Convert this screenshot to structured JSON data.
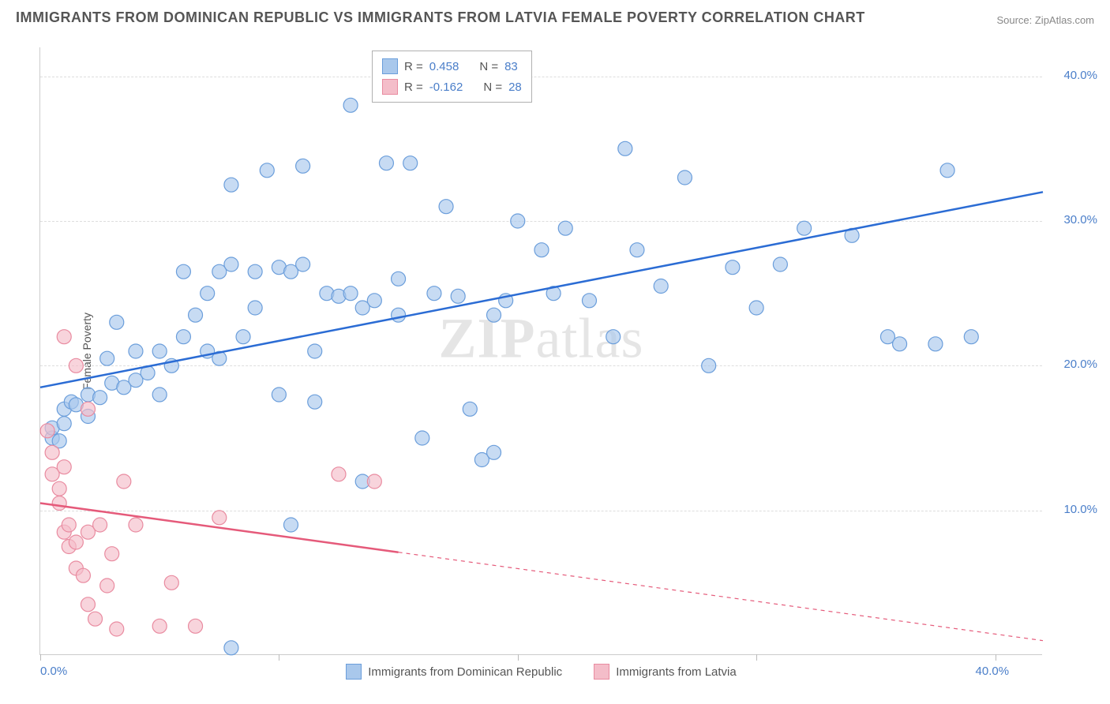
{
  "header": {
    "title": "IMMIGRANTS FROM DOMINICAN REPUBLIC VS IMMIGRANTS FROM LATVIA FEMALE POVERTY CORRELATION CHART",
    "source": "Source: ZipAtlas.com"
  },
  "chart": {
    "type": "scatter",
    "ylabel": "Female Poverty",
    "watermark_prefix": "ZIP",
    "watermark_suffix": "atlas",
    "xlim": [
      0,
      42
    ],
    "ylim": [
      0,
      42
    ],
    "yticks": [
      10.0,
      20.0,
      30.0,
      40.0
    ],
    "ytick_labels": [
      "10.0%",
      "20.0%",
      "30.0%",
      "40.0%"
    ],
    "xticks": [
      0,
      10,
      20,
      30,
      40
    ],
    "xtick_labels": [
      "0.0%",
      "",
      "",
      "",
      "40.0%"
    ],
    "background_color": "#ffffff",
    "grid_color": "#dddddd",
    "axis_color": "#cccccc",
    "marker_radius": 9,
    "marker_stroke_width": 1.2,
    "line_width": 2.5,
    "series": [
      {
        "name": "Immigrants from Dominican Republic",
        "fill_color": "#a9c8ec",
        "stroke_color": "#6b9edb",
        "line_color": "#2b6cd4",
        "r_value": "0.458",
        "n_value": "83",
        "trend": {
          "x1": 0,
          "y1": 18.5,
          "x2": 42,
          "y2": 32.0,
          "dash_from_x": 42
        },
        "points": [
          [
            0.5,
            15.0
          ],
          [
            0.5,
            15.7
          ],
          [
            0.8,
            14.8
          ],
          [
            1.0,
            16.0
          ],
          [
            1.0,
            17.0
          ],
          [
            1.3,
            17.5
          ],
          [
            1.5,
            17.3
          ],
          [
            2.0,
            18.0
          ],
          [
            2.0,
            16.5
          ],
          [
            2.5,
            17.8
          ],
          [
            2.8,
            20.5
          ],
          [
            3.0,
            18.8
          ],
          [
            3.2,
            23.0
          ],
          [
            3.5,
            18.5
          ],
          [
            4.0,
            19.0
          ],
          [
            4.0,
            21.0
          ],
          [
            4.5,
            19.5
          ],
          [
            5.0,
            18.0
          ],
          [
            5.0,
            21.0
          ],
          [
            5.5,
            20.0
          ],
          [
            6.0,
            22.0
          ],
          [
            6.0,
            26.5
          ],
          [
            6.5,
            23.5
          ],
          [
            7.0,
            25.0
          ],
          [
            7.0,
            21.0
          ],
          [
            7.5,
            20.5
          ],
          [
            7.5,
            26.5
          ],
          [
            8.0,
            32.5
          ],
          [
            8.0,
            27.0
          ],
          [
            8.5,
            22.0
          ],
          [
            9.0,
            26.5
          ],
          [
            9.0,
            24.0
          ],
          [
            9.5,
            33.5
          ],
          [
            10.0,
            26.8
          ],
          [
            10.0,
            18.0
          ],
          [
            10.5,
            26.5
          ],
          [
            10.5,
            9.0
          ],
          [
            11.0,
            27.0
          ],
          [
            11.0,
            33.8
          ],
          [
            11.5,
            21.0
          ],
          [
            12.0,
            25.0
          ],
          [
            12.5,
            24.8
          ],
          [
            13.0,
            38.0
          ],
          [
            13.0,
            25.0
          ],
          [
            13.5,
            12.0
          ],
          [
            14.0,
            24.5
          ],
          [
            14.5,
            34.0
          ],
          [
            15.0,
            26.0
          ],
          [
            15.0,
            23.5
          ],
          [
            15.5,
            34.0
          ],
          [
            16.0,
            15.0
          ],
          [
            16.5,
            25.0
          ],
          [
            17.0,
            31.0
          ],
          [
            17.5,
            24.8
          ],
          [
            18.0,
            17.0
          ],
          [
            18.5,
            13.5
          ],
          [
            19.0,
            23.5
          ],
          [
            19.5,
            24.5
          ],
          [
            20.0,
            30.0
          ],
          [
            21.0,
            28.0
          ],
          [
            21.5,
            25.0
          ],
          [
            22.0,
            29.5
          ],
          [
            23.0,
            24.5
          ],
          [
            24.0,
            22.0
          ],
          [
            24.5,
            35.0
          ],
          [
            25.0,
            28.0
          ],
          [
            26.0,
            25.5
          ],
          [
            27.0,
            33.0
          ],
          [
            28.0,
            20.0
          ],
          [
            29.0,
            26.8
          ],
          [
            30.0,
            24.0
          ],
          [
            31.0,
            27.0
          ],
          [
            32.0,
            29.5
          ],
          [
            34.0,
            29.0
          ],
          [
            35.5,
            22.0
          ],
          [
            36.0,
            21.5
          ],
          [
            37.5,
            21.5
          ],
          [
            38.0,
            33.5
          ],
          [
            39.0,
            22.0
          ],
          [
            8.0,
            0.5
          ],
          [
            11.5,
            17.5
          ],
          [
            13.5,
            24.0
          ],
          [
            19.0,
            14.0
          ]
        ]
      },
      {
        "name": "Immigrants from Latvia",
        "fill_color": "#f4bdc9",
        "stroke_color": "#e98ba0",
        "line_color": "#e55a7a",
        "r_value": "-0.162",
        "n_value": "28",
        "trend": {
          "x1": 0,
          "y1": 10.5,
          "x2": 42,
          "y2": 1.0,
          "dash_from_x": 15
        },
        "points": [
          [
            0.3,
            15.5
          ],
          [
            0.5,
            14.0
          ],
          [
            0.5,
            12.5
          ],
          [
            0.8,
            10.5
          ],
          [
            0.8,
            11.5
          ],
          [
            1.0,
            13.0
          ],
          [
            1.0,
            8.5
          ],
          [
            1.2,
            9.0
          ],
          [
            1.2,
            7.5
          ],
          [
            1.5,
            6.0
          ],
          [
            1.5,
            7.8
          ],
          [
            1.8,
            5.5
          ],
          [
            2.0,
            8.5
          ],
          [
            2.0,
            3.5
          ],
          [
            2.3,
            2.5
          ],
          [
            2.5,
            9.0
          ],
          [
            2.8,
            4.8
          ],
          [
            3.0,
            7.0
          ],
          [
            3.2,
            1.8
          ],
          [
            3.5,
            12.0
          ],
          [
            4.0,
            9.0
          ],
          [
            5.0,
            2.0
          ],
          [
            5.5,
            5.0
          ],
          [
            6.5,
            2.0
          ],
          [
            7.5,
            9.5
          ],
          [
            12.5,
            12.5
          ],
          [
            14.0,
            12.0
          ],
          [
            1.0,
            22.0
          ],
          [
            1.5,
            20.0
          ],
          [
            2.0,
            17.0
          ]
        ]
      }
    ],
    "legend": {
      "r_label": "R  = ",
      "n_label": "N  = "
    },
    "bottom_legend": {
      "items": [
        {
          "label": "Immigrants from Dominican Republic",
          "fill": "#a9c8ec",
          "stroke": "#6b9edb"
        },
        {
          "label": "Immigrants from Latvia",
          "fill": "#f4bdc9",
          "stroke": "#e98ba0"
        }
      ]
    }
  }
}
